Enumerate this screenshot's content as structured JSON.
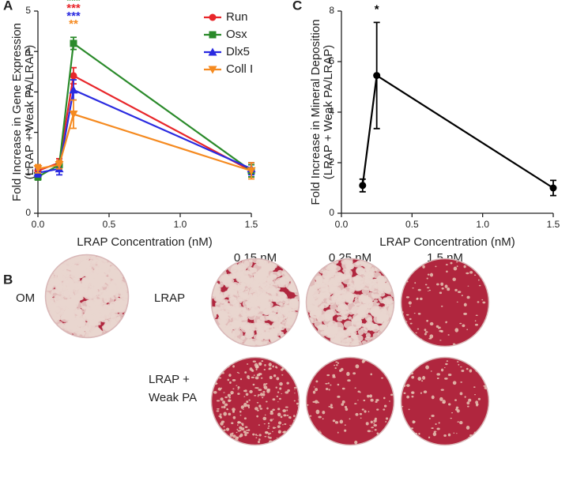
{
  "chart_data": [
    {
      "type": "line",
      "panel_label": "A",
      "xlabel": "LRAP Concentration (nM)",
      "ylabel": [
        "Fold Increase in Gene Expression",
        "(LRAP + Weak PA/LRAP)"
      ],
      "x": [
        0,
        0.15,
        0.25,
        1.5
      ],
      "series": [
        {
          "name": "Run",
          "color": "#e8262a",
          "marker": "circle",
          "values": [
            1.05,
            1.25,
            3.4,
            1.05
          ],
          "errors": [
            0.1,
            0.1,
            0.2,
            0.15
          ]
        },
        {
          "name": "Osx",
          "color": "#2a8a2a",
          "marker": "square",
          "values": [
            0.9,
            1.2,
            4.2,
            1.05
          ],
          "errors": [
            0.08,
            0.1,
            0.15,
            0.15
          ]
        },
        {
          "name": "Dlx5",
          "color": "#2a2ae0",
          "marker": "triangle-up",
          "values": [
            1.0,
            1.1,
            3.05,
            1.1
          ],
          "errors": [
            0.1,
            0.15,
            0.25,
            0.15
          ]
        },
        {
          "name": "Coll I",
          "color": "#f58a20",
          "marker": "triangle-down",
          "values": [
            1.1,
            1.2,
            2.45,
            1.05
          ],
          "errors": [
            0.1,
            0.1,
            0.35,
            0.2
          ]
        }
      ],
      "annotations": [
        {
          "text": "***",
          "color": "#2a8a2a"
        },
        {
          "text": "***",
          "color": "#e8262a"
        },
        {
          "text": "***",
          "color": "#2a2ae0"
        },
        {
          "text": "**",
          "color": "#f58a20"
        }
      ],
      "xlim": [
        0,
        1.5
      ],
      "xticks": [
        {
          "value": 0,
          "label": "0.0"
        },
        0.5,
        {
          "value": 1,
          "label": "1.0"
        },
        1.5
      ],
      "ylim": [
        0,
        5
      ],
      "yticks": [
        0,
        1,
        2,
        3,
        4,
        5
      ],
      "legend": "top-right"
    },
    {
      "type": "line",
      "panel_label": "C",
      "xlabel": "LRAP Concentration (nM)",
      "ylabel": [
        "Fold Increase in Mineral Deposition",
        "(LRAP + Weak PA/LRAP)"
      ],
      "x": [
        0.15,
        0.25,
        1.5
      ],
      "series": [
        {
          "name": null,
          "color": "#000000",
          "marker": "circle",
          "values": [
            1.1,
            5.45,
            1.0
          ],
          "errors": [
            0.25,
            2.1,
            0.3
          ]
        }
      ],
      "annotations": [
        {
          "text": "*",
          "color": "#000000"
        }
      ],
      "xlim": [
        0,
        1.5
      ],
      "xticks": [
        {
          "value": 0,
          "label": "0.0"
        },
        0.5,
        {
          "value": 1,
          "label": "1.0"
        },
        1.5
      ],
      "ylim": [
        0,
        8
      ],
      "yticks": [
        0,
        2,
        4,
        6,
        8
      ],
      "legend": null
    }
  ],
  "panel_b": {
    "panel_label": "B",
    "columns": [
      "0.15 nM",
      "0.25 nM",
      "1.5 nM"
    ],
    "rows": [
      "OM",
      "LRAP",
      [
        "LRAP +",
        "Weak PA"
      ]
    ]
  }
}
